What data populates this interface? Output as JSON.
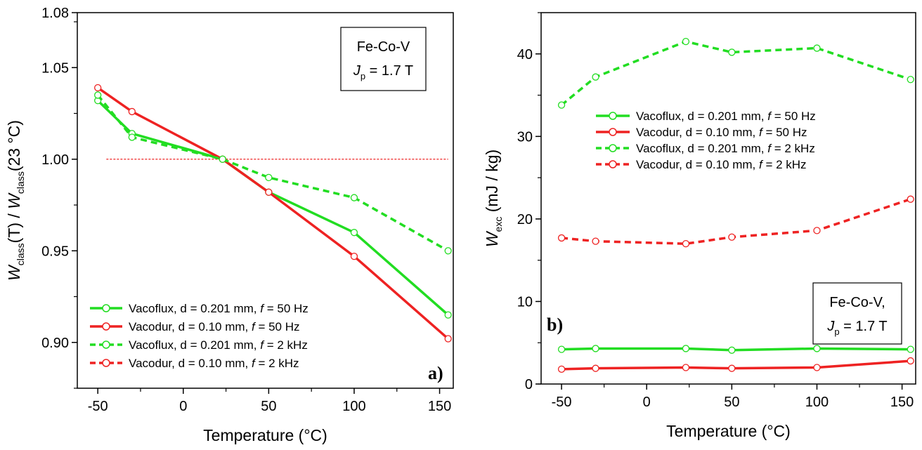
{
  "chart_data": [
    {
      "type": "line",
      "panel_tag": "a)",
      "xlabel": "Temperature (°C)",
      "ylabel": {
        "w1": "W",
        "sub1": "class",
        "mid": "(T) / ",
        "w2": "W",
        "sub2": "class",
        "end": "(23 °C)"
      },
      "xlim": [
        -62,
        158
      ],
      "ylim": [
        0.875,
        1.08
      ],
      "xticks": [
        -50,
        0,
        50,
        100,
        150
      ],
      "xtick_labels": [
        "-50",
        "0",
        "50",
        "100",
        "150"
      ],
      "yticks": [
        0.9,
        0.95,
        1.0,
        1.05,
        1.08
      ],
      "ytick_labels": [
        "0.90",
        "0.95",
        "1.00",
        "1.05",
        "1.08"
      ],
      "reference_line": {
        "y": 1.0,
        "x": [
          -45,
          155
        ],
        "color": "#ee2222",
        "dash": true
      },
      "annotation": {
        "line1": "Fe-Co-V",
        "line2_w": "J",
        "line2_sub": "p",
        "line2_rest": " = 1.7 T"
      },
      "legend_position": "bottom-left",
      "series": [
        {
          "name": "Vacoflux, d = 0.201 mm, f = 50 Hz",
          "color": "#22dd22",
          "dashed": false,
          "x": [
            -50,
            -30,
            23,
            50,
            100,
            155
          ],
          "y": [
            1.032,
            1.014,
            1.0,
            0.982,
            0.96,
            0.915
          ]
        },
        {
          "name": "Vacodur, d = 0.10 mm, f = 50 Hz",
          "color": "#ee2222",
          "dashed": false,
          "x": [
            -50,
            -30,
            23,
            50,
            100,
            155
          ],
          "y": [
            1.039,
            1.026,
            1.0,
            0.982,
            0.947,
            0.902
          ]
        },
        {
          "name": "Vacoflux, d = 0.201 mm, f = 2 kHz",
          "color": "#22dd22",
          "dashed": true,
          "x": [
            -50,
            -30,
            23,
            50,
            100,
            155
          ],
          "y": [
            1.035,
            1.012,
            1.0,
            0.99,
            0.979,
            0.95
          ]
        },
        {
          "name": "Vacodur, d = 0.10 mm, f = 2 kHz",
          "color": "#ee2222",
          "dashed": true,
          "x": [],
          "y": []
        }
      ]
    },
    {
      "type": "line",
      "panel_tag": "b)",
      "xlabel": "Temperature (°C)",
      "ylabel": {
        "w1": "W",
        "sub1": "exc",
        "rest": " (mJ / kg)"
      },
      "xlim": [
        -62,
        158
      ],
      "ylim": [
        0,
        45
      ],
      "xticks": [
        -50,
        0,
        50,
        100,
        150
      ],
      "xtick_labels": [
        "-50",
        "0",
        "50",
        "100",
        "150"
      ],
      "yticks": [
        0,
        10,
        20,
        30,
        40
      ],
      "ytick_labels": [
        "0",
        "10",
        "20",
        "30",
        "40"
      ],
      "annotation": {
        "line1": "Fe-Co-V,",
        "line2_w": "J",
        "line2_sub": "p",
        "line2_rest": " = 1.7 T"
      },
      "legend_position": "center",
      "series": [
        {
          "name": "Vacoflux, d = 0.201 mm, f = 50 Hz",
          "color": "#22dd22",
          "dashed": false,
          "x": [
            -50,
            -30,
            23,
            50,
            100,
            155
          ],
          "y": [
            4.2,
            4.3,
            4.3,
            4.1,
            4.3,
            4.2
          ]
        },
        {
          "name": "Vacodur, d = 0.10 mm, f = 50 Hz",
          "color": "#ee2222",
          "dashed": false,
          "x": [
            -50,
            -30,
            23,
            50,
            100,
            155
          ],
          "y": [
            1.8,
            1.9,
            2.0,
            1.9,
            2.0,
            2.8
          ]
        },
        {
          "name": "Vacoflux, d = 0.201 mm, f = 2 kHz",
          "color": "#22dd22",
          "dashed": true,
          "x": [
            -50,
            -30,
            23,
            50,
            100,
            155
          ],
          "y": [
            33.8,
            37.2,
            41.5,
            40.2,
            40.7,
            36.9
          ]
        },
        {
          "name": "Vacodur, d = 0.10 mm, f = 2 kHz",
          "color": "#ee2222",
          "dashed": true,
          "x": [
            -50,
            -30,
            23,
            50,
            100,
            155
          ],
          "y": [
            17.7,
            17.3,
            17.0,
            17.8,
            18.6,
            22.4
          ]
        }
      ]
    }
  ]
}
